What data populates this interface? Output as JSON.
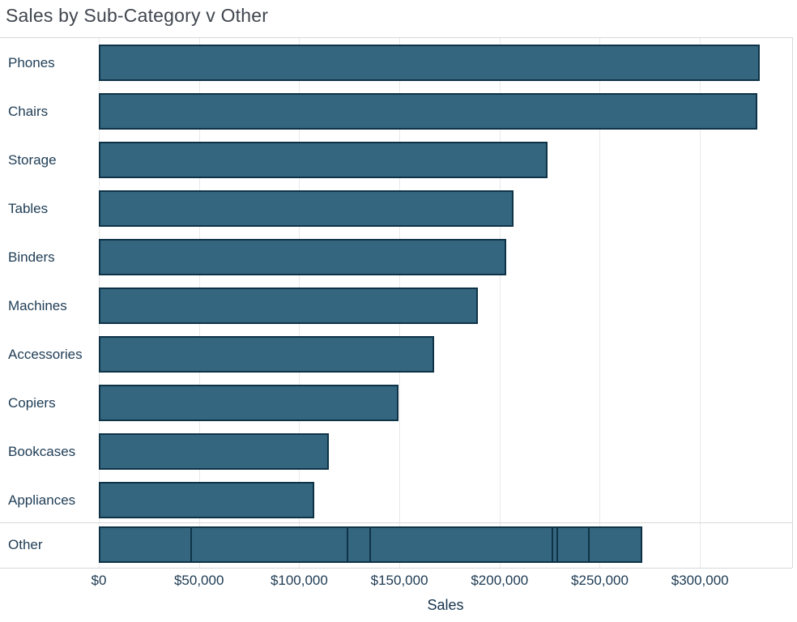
{
  "title": "Sales by Sub-Category v Other",
  "colors": {
    "bar_fill": "#35667f",
    "bar_border": "#0e3347",
    "title_text": "#40464f",
    "category_text": "#1e3c55",
    "gridline": "#e9e9e9",
    "pane_border": "#d8d8d8"
  },
  "chart_data": {
    "type": "bar",
    "orientation": "horizontal",
    "title": "Sales by Sub-Category v Other",
    "xlabel": "Sales",
    "ylabel": "",
    "xlim": [
      0,
      346000
    ],
    "grid": "vertical-only",
    "legend": "none",
    "x_ticks": [
      {
        "label": "$0",
        "value": 0
      },
      {
        "label": "$50,000",
        "value": 50000
      },
      {
        "label": "$100,000",
        "value": 100000
      },
      {
        "label": "$150,000",
        "value": 150000
      },
      {
        "label": "$200,000",
        "value": 200000
      },
      {
        "label": "$250,000",
        "value": 250000
      },
      {
        "label": "$300,000",
        "value": 300000
      }
    ],
    "categories": [
      "Phones",
      "Chairs",
      "Storage",
      "Tables",
      "Binders",
      "Machines",
      "Accessories",
      "Copiers",
      "Bookcases",
      "Appliances"
    ],
    "values": [
      330007,
      328449,
      223844,
      206966,
      203413,
      189239,
      167380,
      149528,
      114880,
      107532
    ],
    "other_row": {
      "label": "Other",
      "total": 275963,
      "segment_values": [
        46674,
        78479,
        12486,
        91705,
        3024,
        16476,
        27119
      ]
    }
  }
}
